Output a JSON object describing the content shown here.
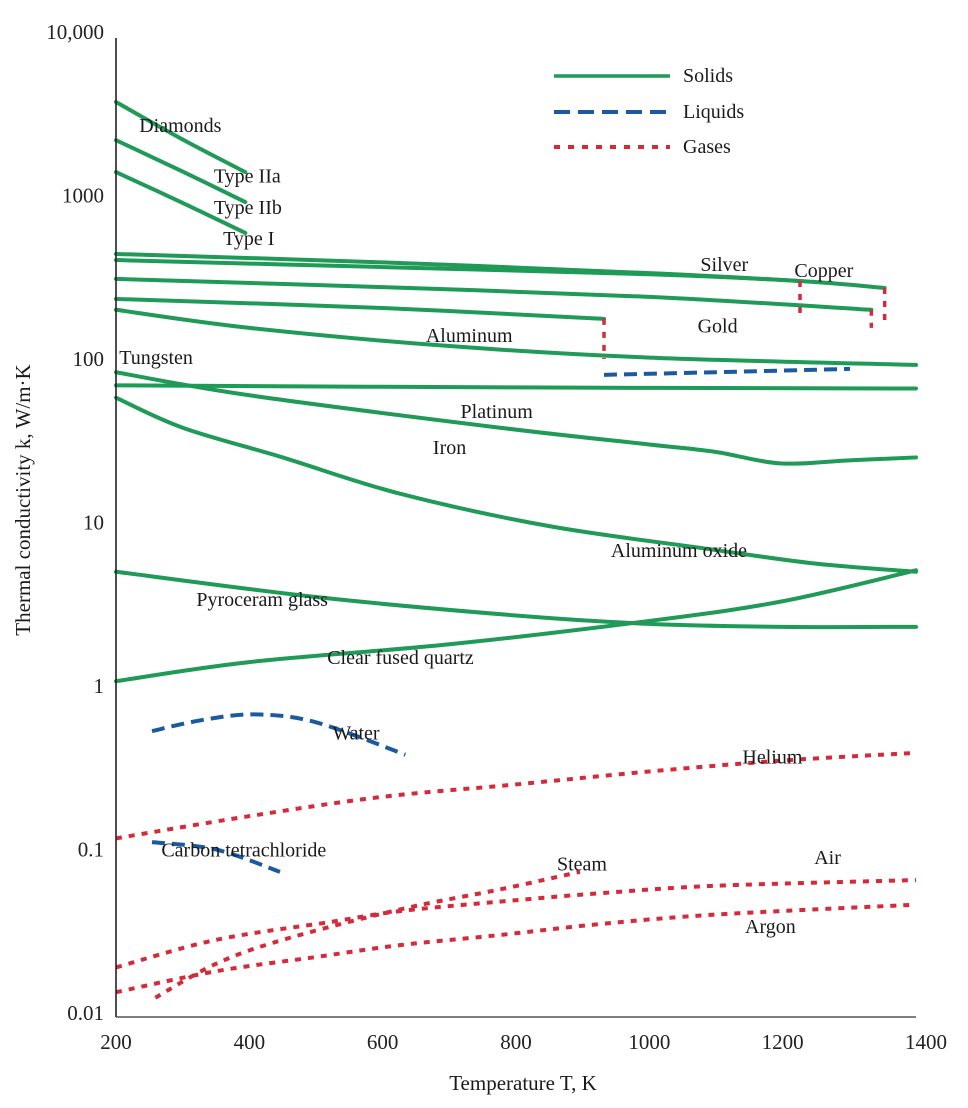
{
  "chart_data": {
    "type": "line",
    "title": "",
    "xlabel": "Temperature T, K",
    "ylabel": "Thermal conductivity k, W/m·K",
    "xlim": [
      200,
      1400
    ],
    "ylim": [
      0.01,
      10000
    ],
    "yscale": "log",
    "grid": false,
    "xticks": [
      200,
      400,
      600,
      800,
      1000,
      1200,
      1400
    ],
    "xtick_labels": [
      "200",
      "400",
      "600",
      "800",
      "1000",
      "1200",
      "1400"
    ],
    "yticks": [
      0.01,
      0.1,
      1,
      10,
      100,
      1000,
      10000
    ],
    "ytick_labels": [
      "0.01",
      "0.1",
      "1",
      "10",
      "100",
      "1000",
      "10,000"
    ],
    "legend": {
      "placement": "top-right",
      "entries": [
        {
          "label": "Solids",
          "phase": "solid"
        },
        {
          "label": "Liquids",
          "phase": "liquid"
        },
        {
          "label": "Gases",
          "phase": "gas"
        }
      ]
    },
    "colors": {
      "solid": "#1f9a57",
      "liquid": "#1c5aa0",
      "gas": "#d42a3a",
      "axis": "#222222"
    },
    "series": [
      {
        "name": "Diamond Type IIa",
        "phase": "solid",
        "points": [
          [
            200,
            3730
          ],
          [
            300,
            2200
          ],
          [
            394,
            1390
          ]
        ]
      },
      {
        "name": "Diamond Type IIb",
        "phase": "solid",
        "points": [
          [
            200,
            2180
          ],
          [
            300,
            1400
          ],
          [
            394,
            912
          ]
        ]
      },
      {
        "name": "Diamond Type I",
        "phase": "solid",
        "points": [
          [
            200,
            1390
          ],
          [
            300,
            900
          ],
          [
            394,
            590
          ]
        ]
      },
      {
        "name": "Silver",
        "phase": "solid",
        "points": [
          [
            200,
            439
          ],
          [
            600,
            390
          ],
          [
            1000,
            335
          ],
          [
            1226,
            300
          ]
        ]
      },
      {
        "name": "Copper",
        "phase": "solid",
        "points": [
          [
            200,
            403
          ],
          [
            600,
            365
          ],
          [
            1000,
            330
          ],
          [
            1226,
            300
          ],
          [
            1353,
            272
          ]
        ]
      },
      {
        "name": "Gold",
        "phase": "solid",
        "points": [
          [
            200,
            309
          ],
          [
            600,
            275
          ],
          [
            1000,
            240
          ],
          [
            1333,
            200
          ]
        ]
      },
      {
        "name": "Aluminum",
        "phase": "solid",
        "points": [
          [
            200,
            233
          ],
          [
            600,
            205
          ],
          [
            932,
            176
          ]
        ]
      },
      {
        "name": "Tungsten",
        "phase": "solid",
        "points": [
          [
            200,
            200
          ],
          [
            400,
            155
          ],
          [
            700,
            120
          ],
          [
            1000,
            102
          ],
          [
            1400,
            92
          ]
        ]
      },
      {
        "name": "Platinum",
        "phase": "solid",
        "points": [
          [
            200,
            69
          ],
          [
            800,
            67
          ],
          [
            1400,
            66
          ]
        ]
      },
      {
        "name": "Iron",
        "phase": "solid",
        "points": [
          [
            200,
            83
          ],
          [
            400,
            60
          ],
          [
            776,
            38
          ],
          [
            1000,
            30
          ],
          [
            1100,
            27
          ],
          [
            1196,
            23
          ],
          [
            1300,
            24
          ],
          [
            1400,
            25
          ]
        ]
      },
      {
        "name": "Aluminum oxide",
        "phase": "solid",
        "points": [
          [
            200,
            58
          ],
          [
            300,
            38
          ],
          [
            450,
            25
          ],
          [
            626,
            15
          ],
          [
            850,
            9.5
          ],
          [
            1076,
            7
          ],
          [
            1250,
            5.6
          ],
          [
            1400,
            5
          ]
        ]
      },
      {
        "name": "Pyroceram glass",
        "phase": "solid",
        "points": [
          [
            200,
            5.0
          ],
          [
            500,
            3.5
          ],
          [
            800,
            2.7
          ],
          [
            1000,
            2.4
          ],
          [
            1200,
            2.3
          ],
          [
            1400,
            2.3
          ]
        ]
      },
      {
        "name": "Clear fused quartz",
        "phase": "solid",
        "points": [
          [
            200,
            1.07
          ],
          [
            400,
            1.4
          ],
          [
            700,
            1.8
          ],
          [
            1000,
            2.5
          ],
          [
            1200,
            3.3
          ],
          [
            1400,
            5.1
          ]
        ]
      },
      {
        "name": "Aluminum (liquid)",
        "phase": "liquid",
        "points": [
          [
            932,
            80
          ],
          [
            1100,
            83
          ],
          [
            1301,
            87
          ]
        ]
      },
      {
        "name": "Water",
        "phase": "liquid",
        "points": [
          [
            254,
            0.53
          ],
          [
            330,
            0.62
          ],
          [
            409,
            0.67
          ],
          [
            500,
            0.6
          ],
          [
            634,
            0.38
          ]
        ]
      },
      {
        "name": "Carbon tetrachloride",
        "phase": "liquid",
        "points": [
          [
            254,
            0.111
          ],
          [
            350,
            0.1
          ],
          [
            446,
            0.073
          ]
        ]
      },
      {
        "name": "Helium",
        "phase": "gas",
        "points": [
          [
            200,
            0.117
          ],
          [
            400,
            0.16
          ],
          [
            600,
            0.21
          ],
          [
            800,
            0.25
          ],
          [
            1000,
            0.3
          ],
          [
            1200,
            0.35
          ],
          [
            1400,
            0.39
          ]
        ]
      },
      {
        "name": "Air",
        "phase": "gas",
        "points": [
          [
            200,
            0.019
          ],
          [
            350,
            0.028
          ],
          [
            521,
            0.036
          ],
          [
            626,
            0.042
          ],
          [
            776,
            0.048
          ],
          [
            926,
            0.054
          ],
          [
            1100,
            0.06
          ],
          [
            1400,
            0.065
          ]
        ]
      },
      {
        "name": "Steam",
        "phase": "gas",
        "points": [
          [
            259,
            0.0124
          ],
          [
            350,
            0.02
          ],
          [
            450,
            0.028
          ],
          [
            626,
            0.043
          ],
          [
            776,
            0.057
          ],
          [
            896,
            0.073
          ]
        ]
      },
      {
        "name": "Argon",
        "phase": "gas",
        "points": [
          [
            200,
            0.0134
          ],
          [
            350,
            0.018
          ],
          [
            500,
            0.022
          ],
          [
            626,
            0.026
          ],
          [
            776,
            0.03
          ],
          [
            926,
            0.035
          ],
          [
            1100,
            0.04
          ],
          [
            1400,
            0.046
          ]
        ]
      },
      {
        "name": "Silver melt",
        "phase": "gas-marker",
        "vertical": true,
        "points": [
          [
            1226,
            300
          ],
          [
            1226,
            175
          ]
        ]
      },
      {
        "name": "Copper melt",
        "phase": "gas-marker",
        "vertical": true,
        "points": [
          [
            1353,
            272
          ],
          [
            1353,
            160
          ]
        ]
      },
      {
        "name": "Gold melt",
        "phase": "gas-marker",
        "vertical": true,
        "points": [
          [
            1333,
            200
          ],
          [
            1333,
            155
          ]
        ]
      },
      {
        "name": "Aluminum melt",
        "phase": "gas-marker",
        "vertical": true,
        "points": [
          [
            932,
            176
          ],
          [
            932,
            100
          ]
        ]
      }
    ],
    "annotations": [
      {
        "text": "Diamonds",
        "x": 290,
        "k": 2700
      },
      {
        "text": "Type IIa",
        "x": 402,
        "k": 1330
      },
      {
        "text": "Type IIb",
        "x": 402,
        "k": 850
      },
      {
        "text": "Type I",
        "x": 402,
        "k": 550
      },
      {
        "text": "Silver",
        "x": 1118,
        "k": 380
      },
      {
        "text": "Copper",
        "x": 1259,
        "k": 350
      },
      {
        "text": "Gold",
        "x": 1100,
        "k": 160
      },
      {
        "text": "Aluminum",
        "x": 720,
        "k": 140
      },
      {
        "text": "Tungsten",
        "x": 260,
        "k": 103
      },
      {
        "text": "Platinum",
        "x": 772,
        "k": 48
      },
      {
        "text": "Iron",
        "x": 703,
        "k": 29
      },
      {
        "text": "Aluminum oxide",
        "x": 1039,
        "k": 6.8
      },
      {
        "text": "Pyroceram glass",
        "x": 424,
        "k": 3.4
      },
      {
        "text": "Clear fused quartz",
        "x": 641,
        "k": 1.5
      },
      {
        "text": "Water",
        "x": 559,
        "k": 0.52
      },
      {
        "text": "Helium",
        "x": 1181,
        "k": 0.37
      },
      {
        "text": "Carbon tetrachloride",
        "x": 406,
        "k": 0.1
      },
      {
        "text": "Steam",
        "x": 896,
        "k": 0.082
      },
      {
        "text": "Air",
        "x": 1268,
        "k": 0.09
      },
      {
        "text": "Argon",
        "x": 1178,
        "k": 0.034
      }
    ]
  }
}
